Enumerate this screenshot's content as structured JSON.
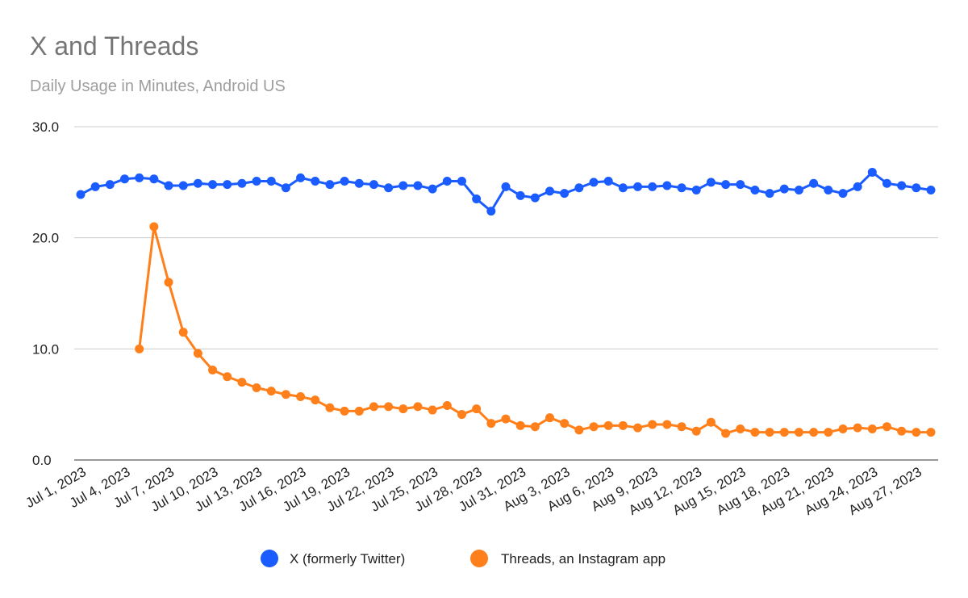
{
  "chart_data": {
    "type": "line",
    "title": "X and Threads",
    "subtitle": "Daily Usage in Minutes, Android US",
    "xlabel": "",
    "ylabel": "",
    "ylim": [
      0,
      30
    ],
    "yticks": [
      "0.0",
      "10.0",
      "20.0",
      "30.0"
    ],
    "grid": true,
    "legend_position": "bottom",
    "x_start": "2023-07-01",
    "x_end": "2023-08-28",
    "xtick_labels": [
      "Jul 1, 2023",
      "Jul 4, 2023",
      "Jul 7, 2023",
      "Jul 10, 2023",
      "Jul 13, 2023",
      "Jul 16, 2023",
      "Jul 19, 2023",
      "Jul 22, 2023",
      "Jul 25, 2023",
      "Jul 28, 2023",
      "Jul 31, 2023",
      "Aug 3, 2023",
      "Aug 6, 2023",
      "Aug 9, 2023",
      "Aug 12, 2023",
      "Aug 15, 2023",
      "Aug 18, 2023",
      "Aug 21, 2023",
      "Aug 24, 2023",
      "Aug 27, 2023"
    ],
    "series": [
      {
        "name": "X (formerly Twitter)",
        "color": "#1a5cff",
        "values": [
          23.9,
          24.6,
          24.8,
          25.3,
          25.4,
          25.3,
          24.7,
          24.7,
          24.9,
          24.8,
          24.8,
          24.9,
          25.1,
          25.1,
          24.5,
          25.4,
          25.1,
          24.8,
          25.1,
          24.9,
          24.8,
          24.5,
          24.7,
          24.7,
          24.4,
          25.1,
          25.1,
          23.5,
          22.4,
          24.6,
          23.8,
          23.6,
          24.2,
          24.0,
          24.5,
          25.0,
          25.1,
          24.5,
          24.6,
          24.6,
          24.7,
          24.5,
          24.3,
          25.0,
          24.8,
          24.8,
          24.3,
          24.0,
          24.4,
          24.3,
          24.9,
          24.3,
          24.0,
          24.6,
          25.9,
          24.9,
          24.7,
          24.5,
          24.3
        ]
      },
      {
        "name": "Threads, an Instagram app",
        "color": "#ff7f1a",
        "values": [
          null,
          null,
          null,
          null,
          10.0,
          21.0,
          16.0,
          11.5,
          9.6,
          8.1,
          7.5,
          7.0,
          6.5,
          6.2,
          5.9,
          5.7,
          5.4,
          4.7,
          4.4,
          4.4,
          4.8,
          4.8,
          4.6,
          4.8,
          4.5,
          4.9,
          4.1,
          4.6,
          3.3,
          3.7,
          3.1,
          3.0,
          3.8,
          3.3,
          2.7,
          3.0,
          3.1,
          3.1,
          2.9,
          3.2,
          3.2,
          3.0,
          2.6,
          3.4,
          2.4,
          2.8,
          2.5,
          2.5,
          2.5,
          2.5,
          2.5,
          2.5,
          2.8,
          2.9,
          2.8,
          3.0,
          2.6,
          2.5,
          2.5
        ]
      }
    ]
  }
}
